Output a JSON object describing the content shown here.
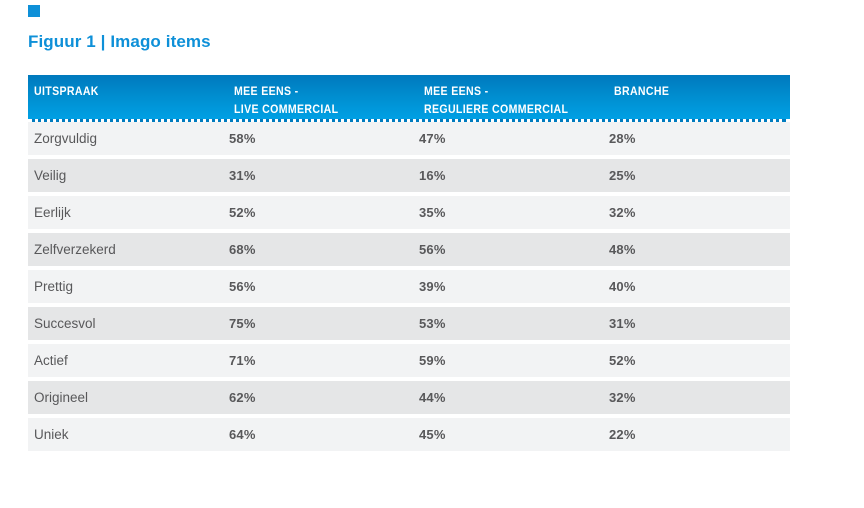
{
  "figure": {
    "title": "Figuur 1 | Imago items"
  },
  "table": {
    "header": {
      "col1": "UITSPRAAK",
      "col2_line1": "MEE EENS -",
      "col2_line2": "LIVE COMMERCIAL",
      "col3_line1": "MEE EENS -",
      "col3_line2": "REGULIERE COMMERCIAL",
      "col4": "BRANCHE"
    },
    "rows": [
      {
        "label": "Zorgvuldig",
        "live": "58%",
        "regulier": "47%",
        "branche": "28%"
      },
      {
        "label": "Veilig",
        "live": "31%",
        "regulier": "16%",
        "branche": "25%"
      },
      {
        "label": "Eerlijk",
        "live": "52%",
        "regulier": "35%",
        "branche": "32%"
      },
      {
        "label": "Zelfverzekerd",
        "live": "68%",
        "regulier": "56%",
        "branche": "48%"
      },
      {
        "label": "Prettig",
        "live": "56%",
        "regulier": "39%",
        "branche": "40%"
      },
      {
        "label": "Succesvol",
        "live": "75%",
        "regulier": "53%",
        "branche": "31%"
      },
      {
        "label": "Actief",
        "live": "71%",
        "regulier": "59%",
        "branche": "52%"
      },
      {
        "label": "Origineel",
        "live": "62%",
        "regulier": "44%",
        "branche": "32%"
      },
      {
        "label": "Uniek",
        "live": "64%",
        "regulier": "45%",
        "branche": "22%"
      }
    ]
  },
  "colors": {
    "title_blue": "#0e90d8",
    "header_gradient_top": "#0079bd",
    "header_gradient_bottom": "#00a0e4",
    "row_light": "#f2f3f4",
    "row_dark": "#e5e6e7",
    "text_dark": "#58585a",
    "header_text": "#ffffff"
  },
  "chart_data": {
    "type": "table",
    "title": "Figuur 1 | Imago items",
    "columns": [
      "UITSPRAAK",
      "MEE EENS - LIVE COMMERCIAL",
      "MEE EENS - REGULIERE COMMERCIAL",
      "BRANCHE"
    ],
    "rows": [
      [
        "Zorgvuldig",
        58,
        47,
        28
      ],
      [
        "Veilig",
        31,
        16,
        25
      ],
      [
        "Eerlijk",
        52,
        35,
        32
      ],
      [
        "Zelfverzekerd",
        68,
        56,
        48
      ],
      [
        "Prettig",
        56,
        39,
        40
      ],
      [
        "Succesvol",
        75,
        53,
        31
      ],
      [
        "Actief",
        71,
        59,
        52
      ],
      [
        "Origineel",
        62,
        44,
        32
      ],
      [
        "Uniek",
        64,
        45,
        22
      ]
    ],
    "values_unit": "%"
  }
}
